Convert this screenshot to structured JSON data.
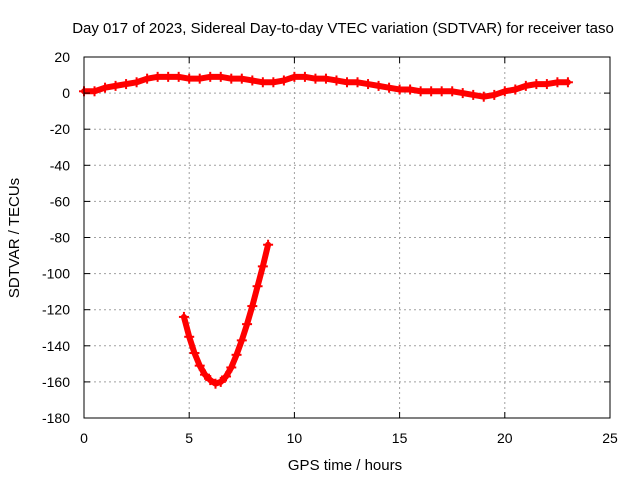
{
  "chart_data": {
    "type": "scatter",
    "title": "Day 017 of 2023, Sidereal Day-to-day VTEC variation (SDTVAR) for receiver taso",
    "xlabel": "GPS time / hours",
    "ylabel": "SDTVAR / TECUs",
    "xlim": [
      0,
      25
    ],
    "ylim": [
      -180,
      20
    ],
    "xticks": [
      0,
      5,
      10,
      15,
      20,
      25
    ],
    "yticks": [
      20,
      0,
      -20,
      -40,
      -60,
      -80,
      -100,
      -120,
      -140,
      -160,
      -180
    ],
    "grid": true,
    "series_color": "#ff0000",
    "series": [
      {
        "name": "main-band",
        "x": [
          0.0,
          0.5,
          1.0,
          1.5,
          2.0,
          2.5,
          3.0,
          3.5,
          4.0,
          4.5,
          5.0,
          5.5,
          6.0,
          6.5,
          7.0,
          7.5,
          8.0,
          8.5,
          9.0,
          9.5,
          10.0,
          10.5,
          11.0,
          11.5,
          12.0,
          12.5,
          13.0,
          13.5,
          14.0,
          14.5,
          15.0,
          15.5,
          16.0,
          16.5,
          17.0,
          17.5,
          18.0,
          18.5,
          19.0,
          19.5,
          20.0,
          20.5,
          21.0,
          21.5,
          22.0,
          22.5,
          23.0
        ],
        "y": [
          1,
          1,
          3,
          4,
          5,
          6,
          8,
          9,
          9,
          9,
          8,
          8,
          9,
          9,
          8,
          8,
          7,
          6,
          6,
          7,
          9,
          9,
          8,
          8,
          7,
          6,
          6,
          5,
          4,
          3,
          2,
          2,
          1,
          1,
          1,
          1,
          0,
          -1,
          -2,
          -1,
          1,
          2,
          4,
          5,
          5,
          6,
          6
        ]
      },
      {
        "name": "arc",
        "x": [
          4.75,
          5.0,
          5.25,
          5.5,
          5.75,
          6.0,
          6.25,
          6.5,
          6.75,
          7.0,
          7.25,
          7.5,
          7.75,
          8.0,
          8.25,
          8.5,
          8.75
        ],
        "y": [
          -124,
          -135,
          -144,
          -151,
          -156,
          -159,
          -161,
          -160,
          -157,
          -152,
          -145,
          -137,
          -128,
          -118,
          -107,
          -96,
          -84
        ]
      }
    ]
  }
}
